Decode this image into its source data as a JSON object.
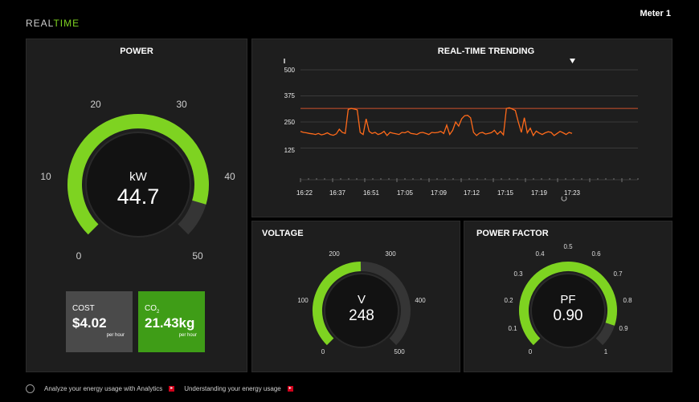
{
  "brand": {
    "prefix": "REAL",
    "suffix": "TIME"
  },
  "meter": "Meter 1",
  "colors": {
    "accent": "#7ed321",
    "trend": "#ff6a1a",
    "limit": "#d0522c",
    "panel": "#1e1e1e"
  },
  "power": {
    "title": "POWER",
    "unit": "kW",
    "value": "44.7",
    "ticks": [
      "0",
      "10",
      "20",
      "30",
      "40",
      "50"
    ],
    "fraction": 0.894
  },
  "cost": {
    "label": "COST",
    "value": "$4.02",
    "unit": "per hour"
  },
  "co2": {
    "label": "CO",
    "sub": "2",
    "value": "21.43kg",
    "unit": "per hour"
  },
  "trend": {
    "title": "REAL-TIME TRENDING",
    "y_ticks": [
      "500",
      "375",
      "250",
      "125"
    ],
    "x_ticks": [
      "16:22",
      "16:37",
      "16:51",
      "17:05",
      "17:09",
      "17:12",
      "17:15",
      "17:19",
      "17:23"
    ],
    "limit_value": 315
  },
  "chart_data": {
    "type": "line",
    "title": "REAL-TIME TRENDING",
    "ylim": [
      0,
      500
    ],
    "y_ticks": [
      125,
      250,
      375,
      500
    ],
    "x_ticks": [
      "16:22",
      "16:37",
      "16:51",
      "17:05",
      "17:09",
      "17:12",
      "17:15",
      "17:19",
      "17:23"
    ],
    "threshold": 315,
    "series": [
      {
        "values": [
          205,
          200,
          198,
          195,
          193,
          190,
          195,
          188,
          192,
          198,
          190,
          186,
          193,
          215,
          200,
          195,
          310,
          315,
          312,
          308,
          200,
          190,
          265,
          205,
          195,
          200,
          190,
          195,
          205,
          185,
          200,
          196,
          193,
          190,
          200,
          198,
          205,
          195,
          193,
          190,
          198,
          200,
          195,
          190,
          200,
          198,
          200,
          205,
          195,
          235,
          190,
          210,
          250,
          230,
          265,
          280,
          282,
          270,
          200,
          185,
          197,
          200,
          192,
          195,
          199,
          210,
          191,
          205,
          188,
          315,
          318,
          312,
          305,
          250,
          200,
          270,
          198,
          220,
          185,
          206,
          197,
          190,
          198,
          203,
          200,
          185,
          195,
          205,
          198,
          190,
          200,
          195
        ]
      }
    ]
  },
  "voltage": {
    "title": "VOLTAGE",
    "unit": "V",
    "value": "248",
    "ticks": [
      "0",
      "100",
      "200",
      "300",
      "400",
      "500"
    ],
    "fraction": 0.496
  },
  "pf": {
    "title": "POWER FACTOR",
    "unit": "PF",
    "value": "0.90",
    "ticks": [
      "0",
      "0.1",
      "0.2",
      "0.3",
      "0.4",
      "0.5",
      "0.6",
      "0.7",
      "0.8",
      "0.9",
      "1"
    ],
    "fraction": 0.9
  },
  "footer": {
    "link1": "Analyze your energy usage with Analytics",
    "link2": "Understanding your energy usage",
    "arrow": "▸"
  }
}
